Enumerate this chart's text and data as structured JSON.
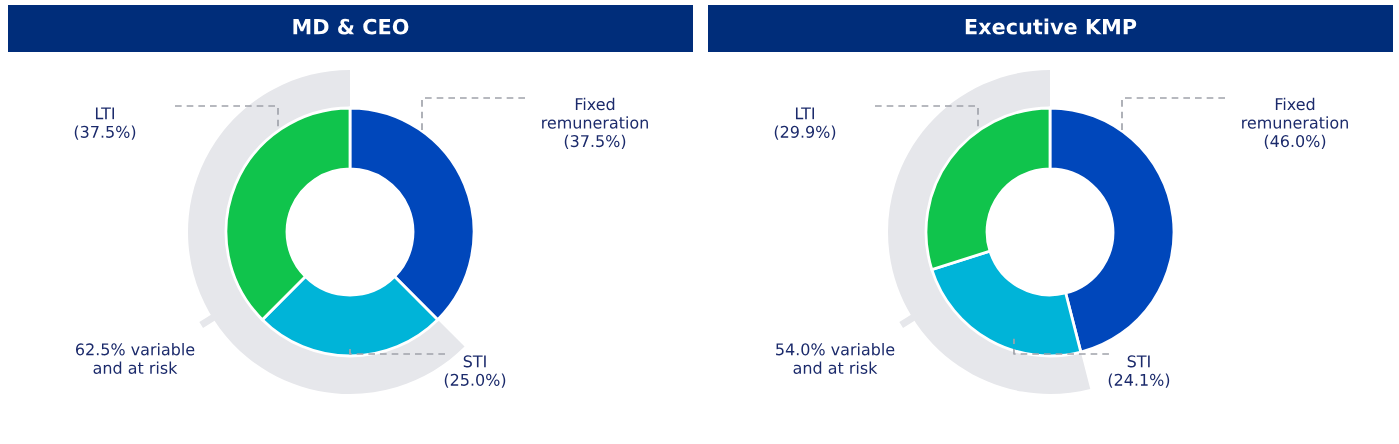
{
  "chart_data": [
    {
      "type": "donut",
      "title": "MD & CEO",
      "categories": [
        "Fixed remuneration",
        "STI",
        "LTI"
      ],
      "values": [
        37.5,
        25.0,
        37.5
      ],
      "colors": [
        "#0047bb",
        "#00b4d8",
        "#10c44c"
      ],
      "value_labels": [
        "(37.5%)",
        "(25.0%)",
        "(37.5%)"
      ],
      "annotations": [
        "62.5% variable and at risk"
      ]
    },
    {
      "type": "donut",
      "title": "Executive KMP",
      "categories": [
        "Fixed remuneration",
        "STI",
        "LTI"
      ],
      "values": [
        46.0,
        24.1,
        29.9
      ],
      "colors": [
        "#0047bb",
        "#00b4d8",
        "#10c44c"
      ],
      "value_labels": [
        "(46.0%)",
        "(24.1%)",
        "(29.9%)"
      ],
      "annotations": [
        "54.0% variable and at risk"
      ]
    }
  ]
}
